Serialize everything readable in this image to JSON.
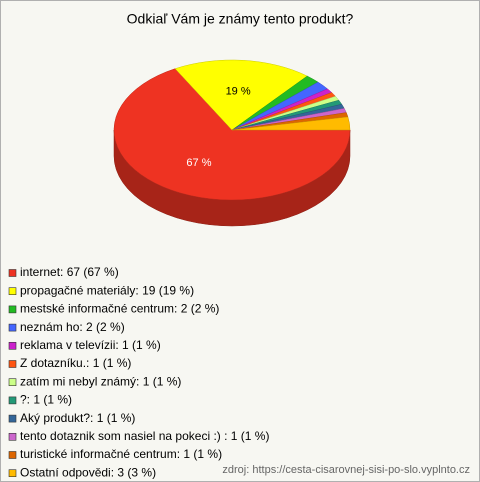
{
  "chart_data": {
    "type": "pie",
    "title": "Odkiaľ Vám je známy tento produkt?",
    "categories": [
      "internet: 67 (67 %)",
      "propagačné materiály: 19 (19 %)",
      "mestské informačné centrum: 2 (2 %)",
      "neznám ho: 2 (2 %)",
      "reklama v televízii: 1 (1 %)",
      "Z dotazníku.: 1 (1 %)",
      "zatím mi nebyl známý: 1 (1 %)",
      "?: 1 (1 %)",
      "Aký produkt?: 1 (1 %)",
      "tento dotaznik som nasiel na pokeci :) : 1 (1 %)",
      "turistické informačné centrum: 1 (1 %)",
      "Ostatní odpovědi: 3 (3 %)"
    ],
    "values": [
      67,
      19,
      2,
      2,
      1,
      1,
      1,
      1,
      1,
      1,
      1,
      3
    ],
    "value_labels": [
      "67 %",
      "19 %",
      null,
      null,
      null,
      null,
      null,
      null,
      null,
      null,
      null,
      null
    ],
    "colors": [
      "#ee3322",
      "#ffff00",
      "#22bb22",
      "#4466ff",
      "#cc22cc",
      "#ff5511",
      "#ccff88",
      "#229977",
      "#336699",
      "#cc66cc",
      "#dd6600",
      "#ffbb00"
    ],
    "source": "zdroj: https://cesta-cisarovnej-sisi-po-slo.vyplnto.cz"
  }
}
